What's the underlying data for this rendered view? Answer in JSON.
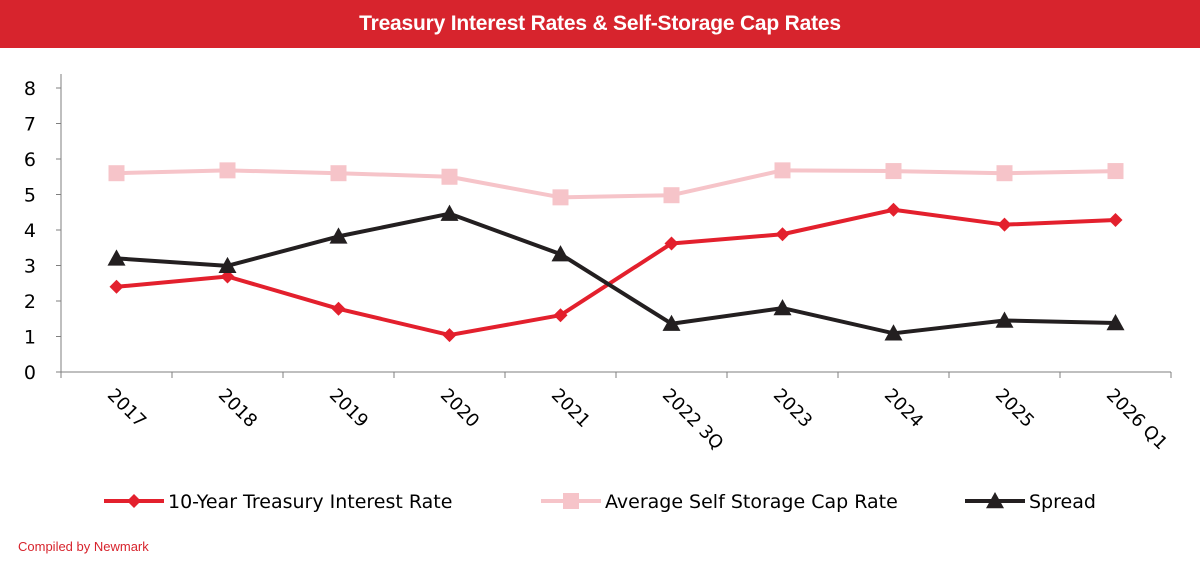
{
  "header": {
    "title": "Treasury Interest Rates & Self-Storage Cap Rates"
  },
  "footer": {
    "source": "Compiled by Newmark"
  },
  "colors": {
    "title_bar": "#d7242d",
    "treasury": "#e3202d",
    "cap_rate": "#f6c4c9",
    "spread": "#231f20"
  },
  "chart_data": {
    "type": "line",
    "title": "Treasury Interest Rates & Self-Storage Cap Rates",
    "xlabel": "",
    "ylabel": "",
    "categories": [
      "2017",
      "2018",
      "2019",
      "2020",
      "2021",
      "2022 3Q",
      "2023",
      "2024",
      "2025",
      "2026 Q1"
    ],
    "ylim": [
      0,
      8
    ],
    "yticks": [
      0,
      1,
      2,
      3,
      4,
      5,
      6,
      7,
      8
    ],
    "grid": false,
    "legend_position": "bottom",
    "series": [
      {
        "name": "10-Year Treasury Interest Rate",
        "marker": "diamond",
        "color": "#e3202d",
        "values": [
          2.4,
          2.69,
          1.78,
          1.04,
          1.6,
          3.62,
          3.88,
          4.57,
          4.15,
          4.28
        ]
      },
      {
        "name": "Average Self Storage Cap Rate",
        "marker": "square",
        "color": "#f6c4c9",
        "values": [
          5.6,
          5.68,
          5.6,
          5.5,
          4.92,
          4.98,
          5.68,
          5.66,
          5.6,
          5.66
        ]
      },
      {
        "name": "Spread",
        "marker": "triangle",
        "color": "#231f20",
        "values": [
          3.2,
          2.99,
          3.82,
          4.46,
          3.32,
          1.36,
          1.8,
          1.09,
          1.45,
          1.38
        ]
      }
    ]
  }
}
